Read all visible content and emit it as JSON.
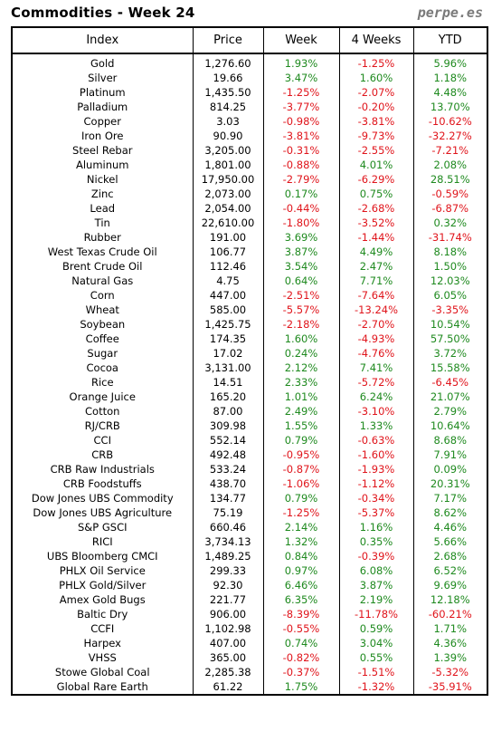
{
  "header": {
    "title": "Commodities - Week 24",
    "site": "perpe.es"
  },
  "colors": {
    "positive": "#1f8a1f",
    "negative": "#e0141b"
  },
  "table": {
    "columns": [
      "Index",
      "Price",
      "Week",
      "4 Weeks",
      "YTD"
    ],
    "rows": [
      [
        "Gold",
        "1,276.60",
        "1.93%",
        "-1.25%",
        "5.96%"
      ],
      [
        "Silver",
        "19.66",
        "3.47%",
        "1.60%",
        "1.18%"
      ],
      [
        "Platinum",
        "1,435.50",
        "-1.25%",
        "-2.07%",
        "4.48%"
      ],
      [
        "Palladium",
        "814.25",
        "-3.77%",
        "-0.20%",
        "13.70%"
      ],
      [
        "Copper",
        "3.03",
        "-0.98%",
        "-3.81%",
        "-10.62%"
      ],
      [
        "Iron Ore",
        "90.90",
        "-3.81%",
        "-9.73%",
        "-32.27%"
      ],
      [
        "Steel Rebar",
        "3,205.00",
        "-0.31%",
        "-2.55%",
        "-7.21%"
      ],
      [
        "Aluminum",
        "1,801.00",
        "-0.88%",
        "4.01%",
        "2.08%"
      ],
      [
        "Nickel",
        "17,950.00",
        "-2.79%",
        "-6.29%",
        "28.51%"
      ],
      [
        "Zinc",
        "2,073.00",
        "0.17%",
        "0.75%",
        "-0.59%"
      ],
      [
        "Lead",
        "2,054.00",
        "-0.44%",
        "-2.68%",
        "-6.87%"
      ],
      [
        "Tin",
        "22,610.00",
        "-1.80%",
        "-3.52%",
        "0.32%"
      ],
      [
        "Rubber",
        "191.00",
        "3.69%",
        "-1.44%",
        "-31.74%"
      ],
      [
        "West Texas Crude Oil",
        "106.77",
        "3.87%",
        "4.49%",
        "8.18%"
      ],
      [
        "Brent Crude Oil",
        "112.46",
        "3.54%",
        "2.47%",
        "1.50%"
      ],
      [
        "Natural Gas",
        "4.75",
        "0.64%",
        "7.71%",
        "12.03%"
      ],
      [
        "Corn",
        "447.00",
        "-2.51%",
        "-7.64%",
        "6.05%"
      ],
      [
        "Wheat",
        "585.00",
        "-5.57%",
        "-13.24%",
        "-3.35%"
      ],
      [
        "Soybean",
        "1,425.75",
        "-2.18%",
        "-2.70%",
        "10.54%"
      ],
      [
        "Coffee",
        "174.35",
        "1.60%",
        "-4.93%",
        "57.50%"
      ],
      [
        "Sugar",
        "17.02",
        "0.24%",
        "-4.76%",
        "3.72%"
      ],
      [
        "Cocoa",
        "3,131.00",
        "2.12%",
        "7.41%",
        "15.58%"
      ],
      [
        "Rice",
        "14.51",
        "2.33%",
        "-5.72%",
        "-6.45%"
      ],
      [
        "Orange Juice",
        "165.20",
        "1.01%",
        "6.24%",
        "21.07%"
      ],
      [
        "Cotton",
        "87.00",
        "2.49%",
        "-3.10%",
        "2.79%"
      ],
      [
        "RJ/CRB",
        "309.98",
        "1.55%",
        "1.33%",
        "10.64%"
      ],
      [
        "CCI",
        "552.14",
        "0.79%",
        "-0.63%",
        "8.68%"
      ],
      [
        "CRB",
        "492.48",
        "-0.95%",
        "-1.60%",
        "7.91%"
      ],
      [
        "CRB Raw Industrials",
        "533.24",
        "-0.87%",
        "-1.93%",
        "0.09%"
      ],
      [
        "CRB Foodstuffs",
        "438.70",
        "-1.06%",
        "-1.12%",
        "20.31%"
      ],
      [
        "Dow Jones UBS Commodity",
        "134.77",
        "0.79%",
        "-0.34%",
        "7.17%"
      ],
      [
        "Dow Jones UBS Agriculture",
        "75.19",
        "-1.25%",
        "-5.37%",
        "8.62%"
      ],
      [
        "S&P GSCI",
        "660.46",
        "2.14%",
        "1.16%",
        "4.46%"
      ],
      [
        "RICI",
        "3,734.13",
        "1.32%",
        "0.35%",
        "5.66%"
      ],
      [
        "UBS Bloomberg CMCI",
        "1,489.25",
        "0.84%",
        "-0.39%",
        "2.68%"
      ],
      [
        "PHLX Oil Service",
        "299.33",
        "0.97%",
        "6.08%",
        "6.52%"
      ],
      [
        "PHLX Gold/Silver",
        "92.30",
        "6.46%",
        "3.87%",
        "9.69%"
      ],
      [
        "Amex Gold Bugs",
        "221.77",
        "6.35%",
        "2.19%",
        "12.18%"
      ],
      [
        "Baltic Dry",
        "906.00",
        "-8.39%",
        "-11.78%",
        "-60.21%"
      ],
      [
        "CCFI",
        "1,102.98",
        "-0.55%",
        "0.59%",
        "1.71%"
      ],
      [
        "Harpex",
        "407.00",
        "0.74%",
        "3.04%",
        "4.36%"
      ],
      [
        "VHSS",
        "365.00",
        "-0.82%",
        "0.55%",
        "1.39%"
      ],
      [
        "Stowe Global Coal",
        "2,285.38",
        "-0.37%",
        "-1.51%",
        "-5.32%"
      ],
      [
        "Global Rare Earth",
        "61.22",
        "1.75%",
        "-1.32%",
        "-35.91%"
      ]
    ]
  }
}
